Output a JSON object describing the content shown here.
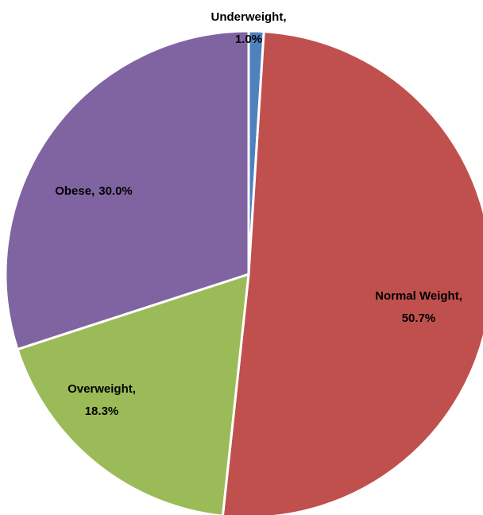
{
  "chart_data": {
    "type": "pie",
    "categories": [
      "Underweight,",
      "Normal Weight,",
      "Overweight,",
      "Obese,"
    ],
    "values": [
      1.0,
      50.7,
      18.3,
      30.0
    ],
    "value_labels": [
      "1.0%",
      "50.7%",
      "18.3%",
      "30.0%"
    ],
    "colors": [
      "#4f81bd",
      "#c0504d",
      "#9bbb59",
      "#8064a2"
    ]
  }
}
